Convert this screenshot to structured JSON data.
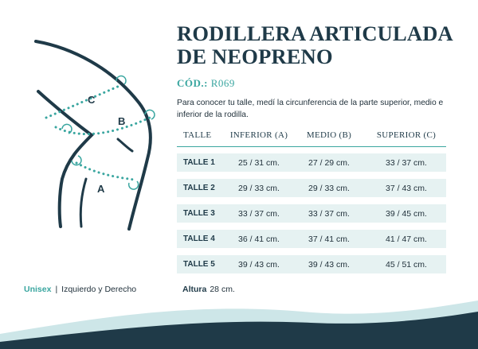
{
  "product": {
    "title_line1": "RODILLERA ARTICULADA",
    "title_line2": "DE NEOPRENO",
    "code_label": "CÓD.:",
    "code_value": "R069",
    "intro": "Para conocer tu talle, medí la circunferencia de la parte superior, medio e inferior de la rodilla."
  },
  "diagram": {
    "label_a": "A",
    "label_b": "B",
    "label_c": "C"
  },
  "table": {
    "headers": [
      "TALLE",
      "INFERIOR (A)",
      "MEDIO (B)",
      "SUPERIOR (C)"
    ],
    "rows": [
      [
        "TALLE 1",
        "25 / 31 cm.",
        "27 / 29 cm.",
        "33 / 37 cm."
      ],
      [
        "TALLE 2",
        "29 / 33 cm.",
        "29 / 33 cm.",
        "37 / 43 cm."
      ],
      [
        "TALLE 3",
        "33 / 37 cm.",
        "33 / 37 cm.",
        "39 / 45 cm."
      ],
      [
        "TALLE 4",
        "36 / 41 cm.",
        "37 / 41 cm.",
        "41 / 47 cm."
      ],
      [
        "TALLE 5",
        "39 / 43 cm.",
        "39 / 43 cm.",
        "45 / 51 cm."
      ]
    ]
  },
  "footer": {
    "unisex": "Unisex",
    "separator": "|",
    "sides": "Izquierdo y Derecho",
    "height_label": "Altura",
    "height_value": "28 cm."
  },
  "colors": {
    "navy": "#1f3a48",
    "teal": "#3aa6a0",
    "row_bg": "#e6f2f2"
  }
}
